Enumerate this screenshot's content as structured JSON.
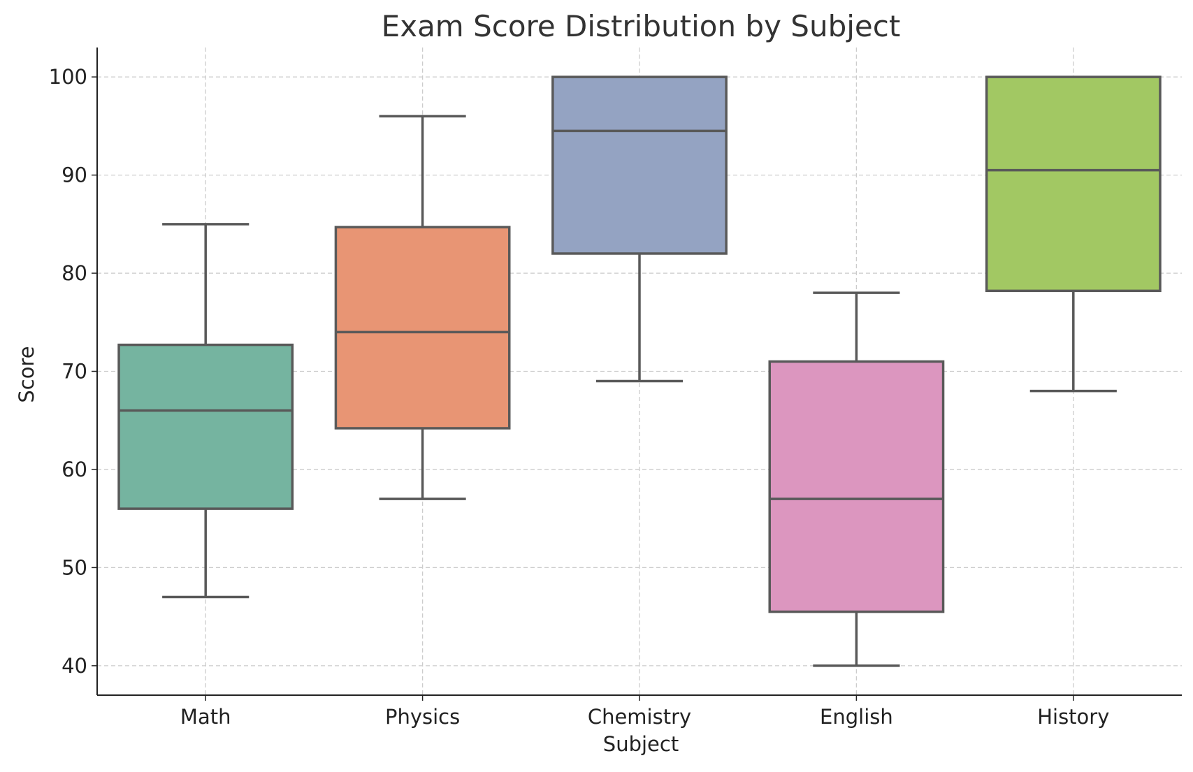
{
  "chart_data": {
    "type": "box",
    "title": "Exam Score Distribution by Subject",
    "xlabel": "Subject",
    "ylabel": "Score",
    "ylim": [
      37,
      103
    ],
    "yticks": [
      40,
      50,
      60,
      70,
      80,
      90,
      100
    ],
    "grid": true,
    "legend": "none",
    "categories": [
      "Math",
      "Physics",
      "Chemistry",
      "English",
      "History"
    ],
    "boxes": [
      {
        "category": "Math",
        "whisker_low": 47,
        "q1": 56,
        "median": 66,
        "q3": 72.7,
        "whisker_high": 85,
        "color": "#75b4a0"
      },
      {
        "category": "Physics",
        "whisker_low": 57,
        "q1": 64.2,
        "median": 74,
        "q3": 84.7,
        "whisker_high": 96,
        "color": "#e89574"
      },
      {
        "category": "Chemistry",
        "whisker_low": 69,
        "q1": 82,
        "median": 94.5,
        "q3": 100,
        "whisker_high": 100,
        "color": "#94a3c2"
      },
      {
        "category": "English",
        "whisker_low": 40,
        "q1": 45.5,
        "median": 57,
        "q3": 71,
        "whisker_high": 78,
        "color": "#dc96bf"
      },
      {
        "category": "History",
        "whisker_low": 68,
        "q1": 78.2,
        "median": 90.5,
        "q3": 100,
        "whisker_high": 100,
        "color": "#a2c863"
      }
    ],
    "colors": {
      "line": "#595959",
      "grid": "#cccccc",
      "axis": "#222222"
    }
  }
}
